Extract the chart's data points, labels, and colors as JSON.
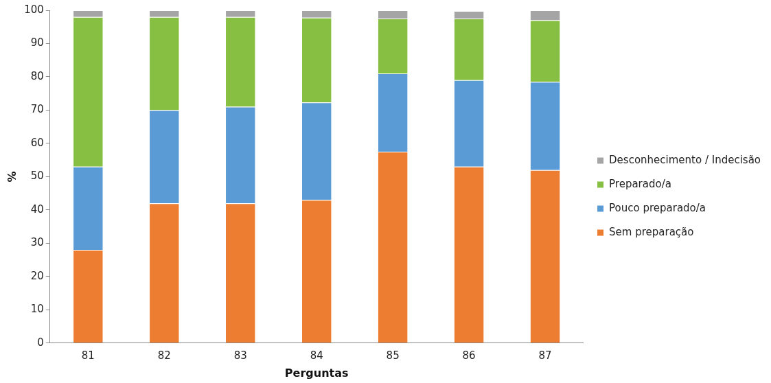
{
  "chart_data": {
    "type": "bar",
    "stacked": true,
    "xlabel": "Perguntas",
    "ylabel": "%",
    "categories": [
      "81",
      "82",
      "83",
      "84",
      "85",
      "86",
      "87"
    ],
    "series": [
      {
        "name": "Sem preparação",
        "color": "#ed7d31",
        "values": [
          28,
          42,
          42,
          43,
          57.5,
          53,
          52
        ]
      },
      {
        "name": "Pouco preparado/a",
        "color": "#5b9bd5",
        "values": [
          25,
          28,
          29,
          29.3,
          23.5,
          26,
          26.5
        ]
      },
      {
        "name": "Preparado/a",
        "color": "#86bf41",
        "values": [
          45,
          28,
          27,
          25.5,
          16.5,
          18.5,
          18.5
        ]
      },
      {
        "name": "Desconhecimento / Indecisão",
        "color": "#a5a5a5",
        "values": [
          2,
          2,
          2,
          2.2,
          2.5,
          2.3,
          3
        ]
      }
    ],
    "ylim": [
      0,
      100
    ],
    "yticks": [
      0,
      10,
      20,
      30,
      40,
      50,
      60,
      70,
      80,
      90,
      100
    ],
    "grid": false,
    "legend": "right"
  }
}
